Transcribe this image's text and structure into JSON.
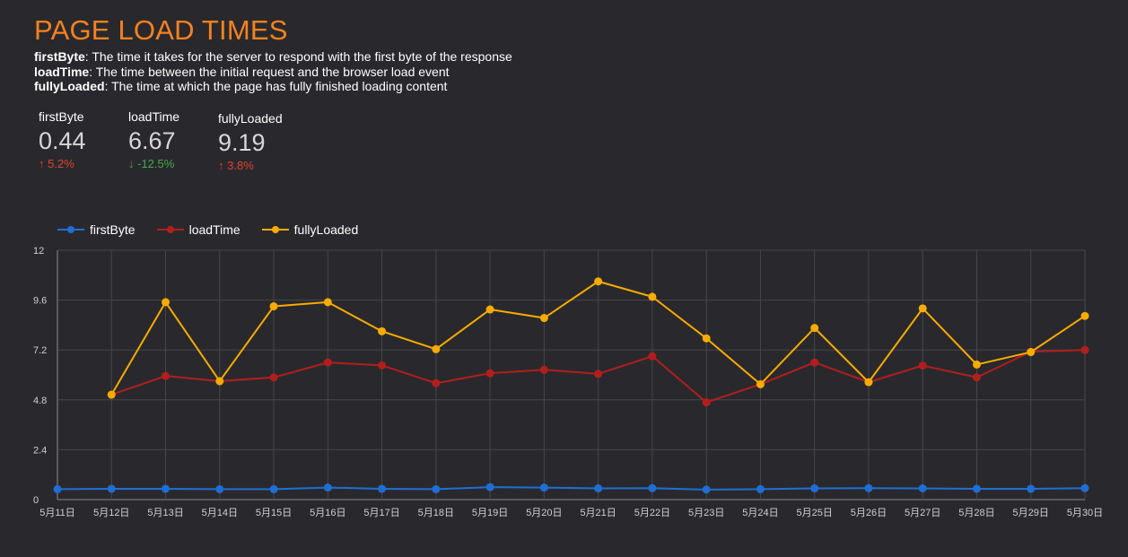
{
  "header": {
    "title": "PAGE LOAD TIMES",
    "descriptions": [
      {
        "term": "firstByte",
        "text": ": The time it takes for the server to respond with the first byte of the response"
      },
      {
        "term": "loadTime",
        "text": ": The time between the initial request and the browser load event"
      },
      {
        "term": "fullyLoaded",
        "text": ": The time at which the page has fully finished loading content"
      }
    ]
  },
  "scorecards": [
    {
      "label": "firstByte",
      "value": "0.44",
      "delta": "5.2%",
      "direction": "up",
      "arrow": "↑"
    },
    {
      "label": "loadTime",
      "value": "6.67",
      "delta": "-12.5%",
      "direction": "down",
      "arrow": "↓"
    },
    {
      "label": "fullyLoaded",
      "value": "9.19",
      "delta": "3.8%",
      "direction": "up",
      "arrow": "↑"
    }
  ],
  "colors": {
    "title": "#f58220",
    "firstByte": "#1f6ed4",
    "loadTime": "#b21e1e",
    "fullyLoaded": "#f9ab00",
    "up": "#e2412e",
    "down": "#46a849",
    "grid": "#474749",
    "background": "#29292d"
  },
  "chart_data": {
    "type": "line",
    "title": "",
    "xlabel": "",
    "ylabel": "",
    "ylim": [
      0,
      12
    ],
    "yticks": [
      "0",
      "2.4",
      "4.8",
      "7.2",
      "9.6",
      "12"
    ],
    "grid": true,
    "legend_position": "top-left",
    "x": [
      "5月11日",
      "5月12日",
      "5月13日",
      "5月14日",
      "5月15日",
      "5月16日",
      "5月17日",
      "5月18日",
      "5月19日",
      "5月20日",
      "5月21日",
      "5月22日",
      "5月23日",
      "5月24日",
      "5月25日",
      "5月26日",
      "5月27日",
      "5月28日",
      "5月29日",
      "5月30日"
    ],
    "series": [
      {
        "name": "firstByte",
        "color": "#1f6ed4",
        "values": [
          0.5,
          0.52,
          0.52,
          0.5,
          0.5,
          0.58,
          0.52,
          0.5,
          0.6,
          0.58,
          0.54,
          0.55,
          0.48,
          0.5,
          0.54,
          0.55,
          0.54,
          0.52,
          0.52,
          0.55
        ]
      },
      {
        "name": "loadTime",
        "color": "#b21e1e",
        "values": [
          null,
          5.05,
          5.95,
          5.7,
          5.88,
          6.6,
          6.46,
          5.6,
          6.08,
          6.25,
          6.05,
          6.9,
          4.68,
          5.55,
          6.6,
          5.65,
          6.45,
          5.88,
          7.12,
          7.2
        ]
      },
      {
        "name": "fullyLoaded",
        "color": "#f9ab00",
        "values": [
          null,
          5.05,
          9.5,
          5.7,
          9.3,
          9.5,
          8.1,
          7.24,
          9.15,
          8.74,
          10.5,
          9.76,
          7.76,
          5.55,
          8.26,
          5.65,
          9.2,
          6.5,
          7.1,
          8.84
        ]
      }
    ]
  }
}
